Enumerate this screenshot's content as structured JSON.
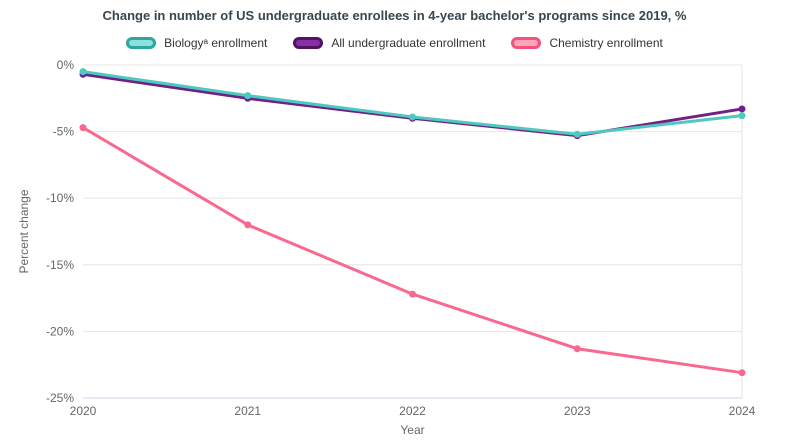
{
  "title": "Change in number of US undergraduate enrollees in 4-year bachelor's programs since 2019, %",
  "chart_data": {
    "type": "line",
    "title": "Change in number of US undergraduate enrollees in 4-year bachelor's programs since 2019, %",
    "x": [
      2020,
      2021,
      2022,
      2023,
      2024
    ],
    "x_tick_labels": [
      "2020",
      "2021",
      "2022",
      "2023",
      "2024"
    ],
    "xlabel": "Year",
    "ylabel": "Percent change",
    "ylim": [
      -25,
      0
    ],
    "y_ticks": [
      0,
      -5,
      -10,
      -15,
      -20,
      -25
    ],
    "y_tick_labels": [
      "0%",
      "-5%",
      "-10%",
      "-15%",
      "-20%",
      "-25%"
    ],
    "grid": true,
    "legend_position": "top",
    "series": [
      {
        "name": "Biologyᵃ enrollment",
        "values": [
          -0.5,
          -2.3,
          -3.9,
          -5.2,
          -3.8
        ],
        "color": "#4fc9c0",
        "swatch_fill": "#8fe0da",
        "swatch_border": "#2aa79e"
      },
      {
        "name": "All undergraduate enrollment",
        "values": [
          -0.7,
          -2.5,
          -4.0,
          -5.3,
          -3.3
        ],
        "color": "#71208a",
        "swatch_fill": "#8b2fa8",
        "swatch_border": "#4e1563"
      },
      {
        "name": "Chemistry enrollment",
        "values": [
          -4.7,
          -12.0,
          -17.2,
          -21.3,
          -23.1
        ],
        "color": "#f9688f",
        "swatch_fill": "#fca4b8",
        "swatch_border": "#f4517c"
      }
    ],
    "axis_colors": {
      "grid": "#e6e6e6",
      "axis_line": "#ccd6eb",
      "tick_text": "#666666"
    }
  }
}
